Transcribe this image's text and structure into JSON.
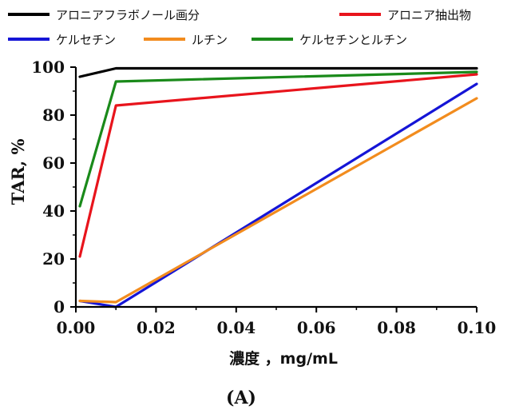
{
  "chart_data": {
    "type": "line",
    "title": "",
    "xlabel": "濃度 ，mg/mL",
    "ylabel": "TAR, %",
    "panel_label": "(A)",
    "xlim": [
      0,
      0.1
    ],
    "ylim": [
      0,
      100
    ],
    "x_ticks": [
      0.0,
      0.02,
      0.04,
      0.06,
      0.08,
      0.1
    ],
    "x_tick_labels": [
      "0.00",
      "0.02",
      "0.04",
      "0.06",
      "0.08",
      "0.10"
    ],
    "y_ticks": [
      0,
      20,
      40,
      60,
      80,
      100
    ],
    "y_tick_labels": [
      "0",
      "20",
      "40",
      "60",
      "80",
      "100"
    ],
    "grid": false,
    "legend_position": "top",
    "series": [
      {
        "name": "アロニアフラボノール画分",
        "color": "#000000",
        "x": [
          0.001,
          0.01,
          0.1
        ],
        "y": [
          96,
          99.5,
          99.5
        ]
      },
      {
        "name": "アロニア抽出物",
        "color": "#e8141c",
        "x": [
          0.001,
          0.01,
          0.1
        ],
        "y": [
          21,
          84,
          97
        ]
      },
      {
        "name": "ケルセチン",
        "color": "#1515d6",
        "x": [
          0.001,
          0.01,
          0.1
        ],
        "y": [
          2.5,
          0,
          93
        ]
      },
      {
        "name": "ルチン",
        "color": "#f28c1e",
        "x": [
          0.001,
          0.01,
          0.1
        ],
        "y": [
          2.5,
          2,
          87
        ]
      },
      {
        "name": "ケルセチンとルチン",
        "color": "#1a8a1a",
        "x": [
          0.001,
          0.01,
          0.1
        ],
        "y": [
          42,
          94,
          98
        ]
      }
    ]
  }
}
